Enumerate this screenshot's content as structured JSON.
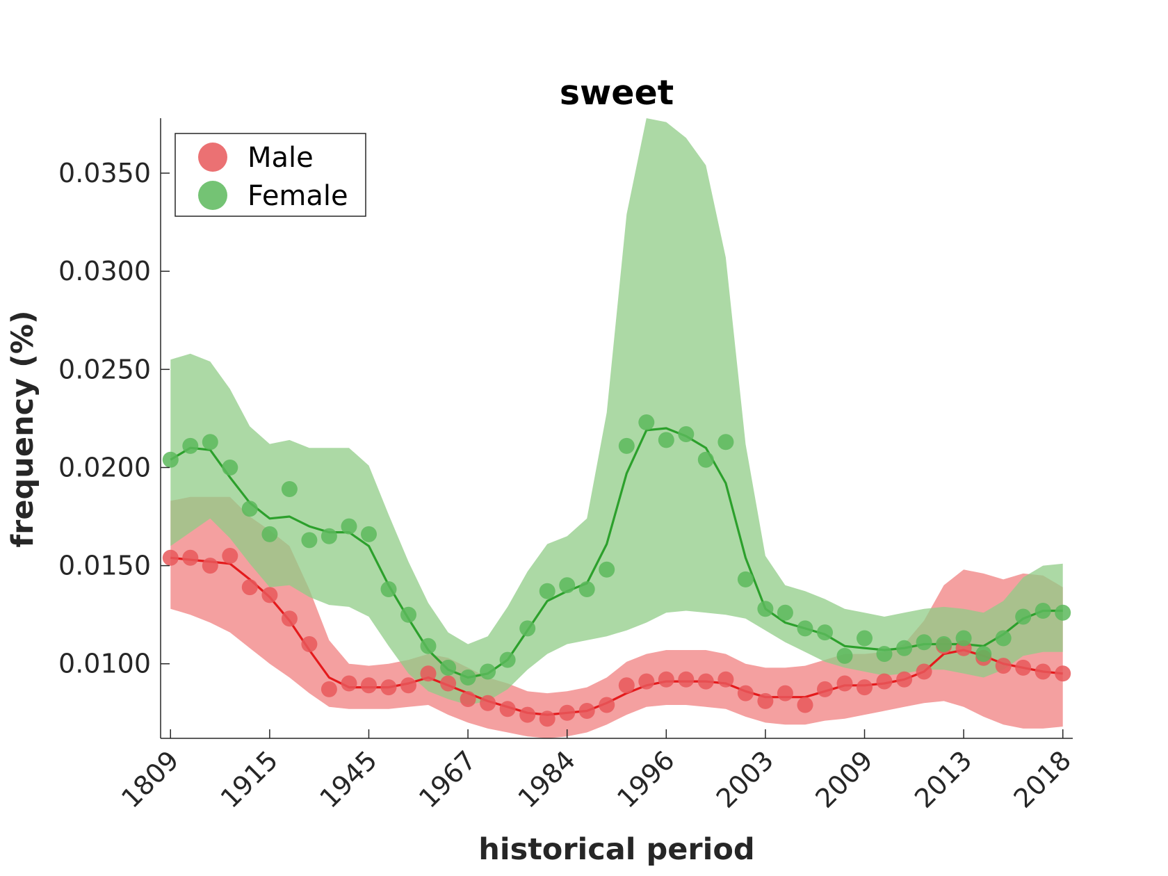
{
  "chart_data": {
    "type": "line",
    "title": "sweet",
    "xlabel": "historical period",
    "ylabel": "frequency (%)",
    "x_tick_labels": [
      "1809",
      "1915",
      "1945",
      "1967",
      "1984",
      "1996",
      "2003",
      "2009",
      "2013",
      "2018"
    ],
    "y_ticks": [
      0.01,
      0.015,
      0.02,
      0.025,
      0.03,
      0.035
    ],
    "y_tick_labels": [
      "0.0100",
      "0.0150",
      "0.0200",
      "0.0250",
      "0.0300",
      "0.0350"
    ],
    "ylim": [
      0.0062,
      0.0378
    ],
    "xlim": [
      -0.5,
      45.5
    ],
    "legend_position": "top-left",
    "grid": false,
    "series": [
      {
        "name": "Male",
        "color": "#e41a1c",
        "fill_color": "#f08080",
        "marker_color": "#e8585a",
        "points": [
          0.0154,
          0.0154,
          0.015,
          0.0155,
          0.0139,
          0.0135,
          0.0123,
          0.011,
          0.0087,
          0.009,
          0.0089,
          0.0088,
          0.0089,
          0.0095,
          0.009,
          0.0082,
          0.008,
          0.0077,
          0.0074,
          0.0072,
          0.0075,
          0.0076,
          0.0079,
          0.0089,
          0.0091,
          0.0092,
          0.0092,
          0.0091,
          0.0092,
          0.0085,
          0.0081,
          0.0085,
          0.0079,
          0.0087,
          0.009,
          0.0088,
          0.0091,
          0.0092,
          0.0096,
          0.0109,
          0.0108,
          0.0103,
          0.0099,
          0.0098,
          0.0096,
          0.0095
        ],
        "line": [
          0.0154,
          0.0153,
          0.0152,
          0.0151,
          0.0143,
          0.0134,
          0.0122,
          0.0107,
          0.0093,
          0.0088,
          0.0088,
          0.0088,
          0.009,
          0.0093,
          0.0089,
          0.0085,
          0.0081,
          0.0078,
          0.0075,
          0.0074,
          0.0075,
          0.0076,
          0.008,
          0.0085,
          0.0089,
          0.0091,
          0.0091,
          0.0091,
          0.009,
          0.0086,
          0.0083,
          0.0083,
          0.0083,
          0.0086,
          0.0089,
          0.0089,
          0.009,
          0.0092,
          0.0096,
          0.0105,
          0.0107,
          0.0104,
          0.01,
          0.0098,
          0.0096,
          0.0095
        ],
        "upper": [
          0.0183,
          0.0185,
          0.0185,
          0.0185,
          0.0175,
          0.0168,
          0.016,
          0.0138,
          0.0112,
          0.01,
          0.0099,
          0.01,
          0.0102,
          0.0105,
          0.0103,
          0.0098,
          0.0093,
          0.009,
          0.0086,
          0.0085,
          0.0086,
          0.0088,
          0.0093,
          0.0101,
          0.0105,
          0.0107,
          0.0107,
          0.0107,
          0.0105,
          0.01,
          0.0098,
          0.0098,
          0.0099,
          0.0102,
          0.0105,
          0.0105,
          0.0106,
          0.011,
          0.0122,
          0.014,
          0.0148,
          0.0146,
          0.0143,
          0.0146,
          0.0145,
          0.0139
        ],
        "lower": [
          0.0128,
          0.0125,
          0.0121,
          0.0116,
          0.0108,
          0.01,
          0.0093,
          0.0085,
          0.0078,
          0.0077,
          0.0077,
          0.0077,
          0.0078,
          0.0079,
          0.0074,
          0.007,
          0.0067,
          0.0065,
          0.0063,
          0.0062,
          0.0063,
          0.0065,
          0.0069,
          0.0074,
          0.0078,
          0.0079,
          0.0079,
          0.0078,
          0.0077,
          0.0073,
          0.007,
          0.0069,
          0.0069,
          0.0071,
          0.0072,
          0.0074,
          0.0076,
          0.0078,
          0.008,
          0.0081,
          0.0078,
          0.0073,
          0.0069,
          0.0067,
          0.0067,
          0.0068
        ]
      },
      {
        "name": "Female",
        "color": "#2ca02c",
        "fill_color": "#90cc87",
        "marker_color": "#5cb85c",
        "points": [
          0.0204,
          0.0211,
          0.0213,
          0.02,
          0.0179,
          0.0166,
          0.0189,
          0.0163,
          0.0165,
          0.017,
          0.0166,
          0.0138,
          0.0125,
          0.0109,
          0.0098,
          0.0093,
          0.0096,
          0.0102,
          0.0118,
          0.0137,
          0.014,
          0.0138,
          0.0148,
          0.0211,
          0.0223,
          0.0214,
          0.0217,
          0.0204,
          0.0213,
          0.0143,
          0.0128,
          0.0126,
          0.0118,
          0.0116,
          0.0104,
          0.0113,
          0.0105,
          0.0108,
          0.0111,
          0.011,
          0.0113,
          0.0105,
          0.0113,
          0.0124,
          0.0127,
          0.0126
        ],
        "line": [
          0.0204,
          0.021,
          0.0209,
          0.0195,
          0.0182,
          0.0174,
          0.0175,
          0.017,
          0.0167,
          0.0167,
          0.016,
          0.014,
          0.0123,
          0.0107,
          0.0097,
          0.0093,
          0.0095,
          0.0102,
          0.0117,
          0.0132,
          0.0137,
          0.0141,
          0.0161,
          0.0197,
          0.0219,
          0.022,
          0.0216,
          0.021,
          0.0192,
          0.0154,
          0.0128,
          0.0121,
          0.0118,
          0.0115,
          0.0109,
          0.0108,
          0.0107,
          0.0108,
          0.011,
          0.011,
          0.011,
          0.0109,
          0.0115,
          0.0123,
          0.0127,
          0.0127
        ],
        "upper": [
          0.0255,
          0.0258,
          0.0254,
          0.024,
          0.0221,
          0.0212,
          0.0214,
          0.021,
          0.021,
          0.021,
          0.0201,
          0.0176,
          0.0152,
          0.0131,
          0.0116,
          0.011,
          0.0114,
          0.0129,
          0.0147,
          0.0161,
          0.0165,
          0.0174,
          0.0228,
          0.0329,
          0.0378,
          0.0376,
          0.0368,
          0.0354,
          0.0307,
          0.0212,
          0.0155,
          0.014,
          0.0137,
          0.0133,
          0.0128,
          0.0126,
          0.0124,
          0.0126,
          0.0128,
          0.0129,
          0.0128,
          0.0126,
          0.0132,
          0.0144,
          0.015,
          0.0151
        ],
        "lower": [
          0.016,
          0.0167,
          0.0174,
          0.0164,
          0.0151,
          0.0139,
          0.014,
          0.0134,
          0.013,
          0.0129,
          0.0124,
          0.0109,
          0.0095,
          0.0086,
          0.0082,
          0.0079,
          0.0081,
          0.0087,
          0.0097,
          0.0105,
          0.011,
          0.0112,
          0.0114,
          0.0117,
          0.0121,
          0.0126,
          0.0127,
          0.0126,
          0.0125,
          0.0123,
          0.0117,
          0.0111,
          0.0106,
          0.0101,
          0.0098,
          0.0096,
          0.0094,
          0.0095,
          0.0097,
          0.0097,
          0.0095,
          0.0093,
          0.0097,
          0.0104,
          0.0106,
          0.0106
        ]
      }
    ]
  }
}
